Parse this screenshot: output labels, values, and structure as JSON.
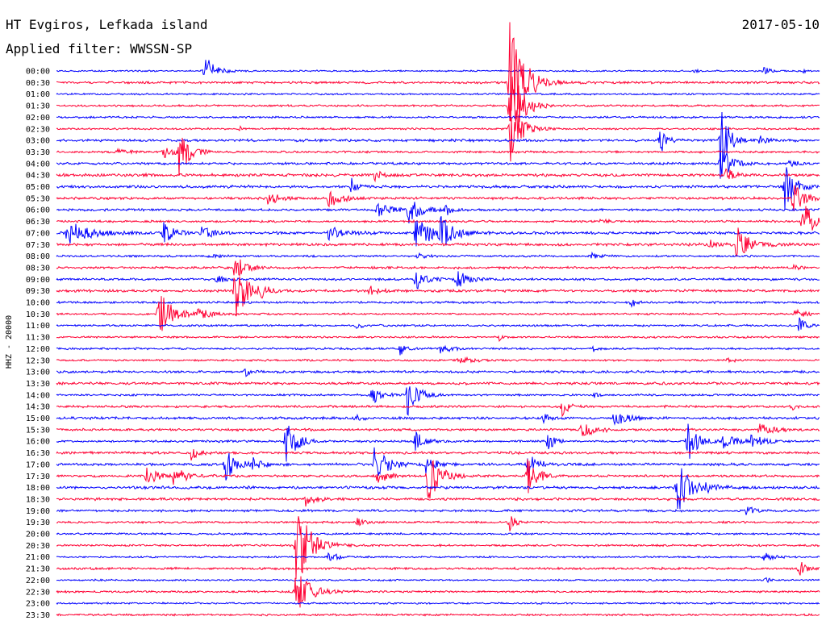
{
  "header": {
    "station": "HT Evgiros, Lefkada island",
    "date": "2017-05-10",
    "filter": "Applied filter: WWSSN-SP"
  },
  "chart_data": {
    "type": "line",
    "title": "HT Evgiros, Lefkada island",
    "subtitle": "Applied filter: WWSSN-SP",
    "date": "2017-05-10",
    "ylabel": "HHZ - 20000",
    "xlabel": "",
    "x_unit": "minutes after row start",
    "xlim": [
      0,
      30
    ],
    "grid": false,
    "legend": "none",
    "colors": [
      "#0000ff",
      "#ff0033"
    ],
    "noise": [
      0.8,
      1.2,
      0.9,
      1.0,
      1.0,
      1.0,
      1.3,
      1.1,
      1.2,
      1.5,
      1.4,
      1.3,
      1.2,
      1.1,
      1.3,
      1.4,
      1.0,
      1.2,
      1.2,
      1.3,
      1.1,
      1.0,
      1.0,
      1.0,
      1.0,
      1.0,
      1.2,
      1.3,
      1.0,
      1.2,
      1.3,
      1.2,
      1.1,
      1.3,
      1.3,
      1.2,
      1.4,
      1.3,
      1.2,
      1.0,
      1.0,
      1.0,
      0.9,
      1.2,
      0.9,
      1.0,
      0.9,
      1.0
    ],
    "rows": [
      "00:00",
      "00:30",
      "01:00",
      "01:30",
      "02:00",
      "02:30",
      "03:00",
      "03:30",
      "04:00",
      "04:30",
      "05:00",
      "05:30",
      "06:00",
      "06:30",
      "07:00",
      "07:30",
      "08:00",
      "08:30",
      "09:00",
      "09:30",
      "10:00",
      "10:30",
      "11:00",
      "11:30",
      "12:00",
      "12:30",
      "13:00",
      "13:30",
      "14:00",
      "14:30",
      "15:00",
      "15:30",
      "16:00",
      "16:30",
      "17:00",
      "17:30",
      "18:00",
      "18:30",
      "19:00",
      "19:30",
      "20:00",
      "20:30",
      "21:00",
      "21:30",
      "22:00",
      "22:30",
      "23:00",
      "23:30"
    ],
    "events": [
      {
        "row": 0,
        "t": 5.8,
        "amp": 22,
        "dur": 1.0
      },
      {
        "row": 0,
        "t": 27.8,
        "amp": 7,
        "dur": 0.5
      },
      {
        "row": 0,
        "t": 29.4,
        "amp": 5,
        "dur": 0.3
      },
      {
        "row": 0,
        "t": 25.1,
        "amp": 3,
        "dur": 0.3
      },
      {
        "row": 1,
        "t": 17.8,
        "amp": 95,
        "dur": 1.4
      },
      {
        "row": 3,
        "t": 17.8,
        "amp": 60,
        "dur": 1.2
      },
      {
        "row": 5,
        "t": 17.8,
        "amp": 55,
        "dur": 1.0
      },
      {
        "row": 5,
        "t": 7.2,
        "amp": 4,
        "dur": 0.3
      },
      {
        "row": 6,
        "t": 23.7,
        "amp": 20,
        "dur": 0.6
      },
      {
        "row": 6,
        "t": 26.1,
        "amp": 50,
        "dur": 0.8
      },
      {
        "row": 6,
        "t": 27.6,
        "amp": 7,
        "dur": 0.8
      },
      {
        "row": 7,
        "t": 4.2,
        "amp": 8,
        "dur": 1.0
      },
      {
        "row": 7,
        "t": 4.8,
        "amp": 30,
        "dur": 1.0
      },
      {
        "row": 7,
        "t": 2.4,
        "amp": 4,
        "dur": 1.0
      },
      {
        "row": 8,
        "t": 26.1,
        "amp": 25,
        "dur": 1.0
      },
      {
        "row": 8,
        "t": 28.8,
        "amp": 8,
        "dur": 0.6
      },
      {
        "row": 9,
        "t": 12.5,
        "amp": 6,
        "dur": 0.8
      },
      {
        "row": 9,
        "t": 26.3,
        "amp": 8,
        "dur": 1.0
      },
      {
        "row": 10,
        "t": 11.6,
        "amp": 12,
        "dur": 0.4
      },
      {
        "row": 10,
        "t": 28.6,
        "amp": 30,
        "dur": 1.2
      },
      {
        "row": 11,
        "t": 8.3,
        "amp": 10,
        "dur": 1.0
      },
      {
        "row": 11,
        "t": 10.7,
        "amp": 12,
        "dur": 1.2
      },
      {
        "row": 11,
        "t": 28.9,
        "amp": 25,
        "dur": 1.0
      },
      {
        "row": 12,
        "t": 12.6,
        "amp": 10,
        "dur": 1.5
      },
      {
        "row": 12,
        "t": 13.8,
        "amp": 18,
        "dur": 1.2
      },
      {
        "row": 12,
        "t": 15.3,
        "amp": 8,
        "dur": 0.5
      },
      {
        "row": 13,
        "t": 29.3,
        "amp": 30,
        "dur": 1.2
      },
      {
        "row": 13,
        "t": 21.4,
        "amp": 5,
        "dur": 0.5
      },
      {
        "row": 14,
        "t": 0.4,
        "amp": 15,
        "dur": 2.5
      },
      {
        "row": 14,
        "t": 4.2,
        "amp": 15,
        "dur": 1.0
      },
      {
        "row": 14,
        "t": 5.7,
        "amp": 10,
        "dur": 1.0
      },
      {
        "row": 14,
        "t": 10.7,
        "amp": 10,
        "dur": 1.6
      },
      {
        "row": 14,
        "t": 14.1,
        "amp": 18,
        "dur": 2.2
      },
      {
        "row": 14,
        "t": 15.1,
        "amp": 22,
        "dur": 1.0
      },
      {
        "row": 15,
        "t": 26.7,
        "amp": 25,
        "dur": 1.3
      },
      {
        "row": 15,
        "t": 25.7,
        "amp": 5,
        "dur": 0.6
      },
      {
        "row": 16,
        "t": 14.2,
        "amp": 4,
        "dur": 0.6
      },
      {
        "row": 16,
        "t": 21.0,
        "amp": 4,
        "dur": 0.8
      },
      {
        "row": 16,
        "t": 6.0,
        "amp": 3,
        "dur": 0.8
      },
      {
        "row": 17,
        "t": 7.0,
        "amp": 18,
        "dur": 1.0
      },
      {
        "row": 17,
        "t": 29.0,
        "amp": 4,
        "dur": 0.5
      },
      {
        "row": 18,
        "t": 14.1,
        "amp": 14,
        "dur": 1.0
      },
      {
        "row": 18,
        "t": 15.7,
        "amp": 14,
        "dur": 1.0
      },
      {
        "row": 18,
        "t": 6.3,
        "amp": 6,
        "dur": 0.8
      },
      {
        "row": 19,
        "t": 7.0,
        "amp": 40,
        "dur": 1.2
      },
      {
        "row": 19,
        "t": 8.0,
        "amp": 10,
        "dur": 0.6
      },
      {
        "row": 19,
        "t": 12.3,
        "amp": 6,
        "dur": 1.0
      },
      {
        "row": 20,
        "t": 22.6,
        "amp": 8,
        "dur": 0.4
      },
      {
        "row": 21,
        "t": 4.0,
        "amp": 30,
        "dur": 1.4
      },
      {
        "row": 21,
        "t": 5.5,
        "amp": 10,
        "dur": 1.2
      },
      {
        "row": 21,
        "t": 29.0,
        "amp": 8,
        "dur": 1.0
      },
      {
        "row": 22,
        "t": 29.2,
        "amp": 14,
        "dur": 0.6
      },
      {
        "row": 22,
        "t": 11.8,
        "amp": 5,
        "dur": 0.5
      },
      {
        "row": 23,
        "t": 17.4,
        "amp": 5,
        "dur": 0.3
      },
      {
        "row": 24,
        "t": 13.5,
        "amp": 9,
        "dur": 0.6
      },
      {
        "row": 24,
        "t": 15.1,
        "amp": 7,
        "dur": 1.0
      },
      {
        "row": 24,
        "t": 21.1,
        "amp": 5,
        "dur": 0.3
      },
      {
        "row": 25,
        "t": 15.8,
        "amp": 4,
        "dur": 1.5
      },
      {
        "row": 25,
        "t": 26.4,
        "amp": 4,
        "dur": 0.6
      },
      {
        "row": 26,
        "t": 7.4,
        "amp": 6,
        "dur": 0.6
      },
      {
        "row": 28,
        "t": 12.4,
        "amp": 14,
        "dur": 0.8
      },
      {
        "row": 28,
        "t": 13.8,
        "amp": 30,
        "dur": 1.0
      },
      {
        "row": 28,
        "t": 21.1,
        "amp": 5,
        "dur": 0.4
      },
      {
        "row": 29,
        "t": 19.9,
        "amp": 20,
        "dur": 0.5
      },
      {
        "row": 29,
        "t": 28.9,
        "amp": 8,
        "dur": 0.3
      },
      {
        "row": 30,
        "t": 11.7,
        "amp": 5,
        "dur": 0.6
      },
      {
        "row": 30,
        "t": 19.1,
        "amp": 6,
        "dur": 0.6
      },
      {
        "row": 30,
        "t": 21.9,
        "amp": 10,
        "dur": 1.4
      },
      {
        "row": 31,
        "t": 20.6,
        "amp": 10,
        "dur": 1.4
      },
      {
        "row": 31,
        "t": 27.6,
        "amp": 8,
        "dur": 1.5
      },
      {
        "row": 32,
        "t": 9.0,
        "amp": 35,
        "dur": 1.0
      },
      {
        "row": 32,
        "t": 14.1,
        "amp": 12,
        "dur": 1.0
      },
      {
        "row": 32,
        "t": 19.3,
        "amp": 14,
        "dur": 0.6
      },
      {
        "row": 32,
        "t": 24.8,
        "amp": 30,
        "dur": 1.0
      },
      {
        "row": 32,
        "t": 26.2,
        "amp": 10,
        "dur": 1.4
      },
      {
        "row": 32,
        "t": 27.3,
        "amp": 8,
        "dur": 1.3
      },
      {
        "row": 33,
        "t": 5.3,
        "amp": 10,
        "dur": 0.8
      },
      {
        "row": 34,
        "t": 6.6,
        "amp": 22,
        "dur": 1.2
      },
      {
        "row": 34,
        "t": 7.7,
        "amp": 8,
        "dur": 1.0
      },
      {
        "row": 34,
        "t": 12.5,
        "amp": 25,
        "dur": 1.2
      },
      {
        "row": 34,
        "t": 14.5,
        "amp": 14,
        "dur": 0.8
      },
      {
        "row": 34,
        "t": 18.5,
        "amp": 14,
        "dur": 1.0
      },
      {
        "row": 35,
        "t": 3.5,
        "amp": 12,
        "dur": 1.2
      },
      {
        "row": 35,
        "t": 4.6,
        "amp": 12,
        "dur": 1.2
      },
      {
        "row": 35,
        "t": 14.6,
        "amp": 35,
        "dur": 1.2
      },
      {
        "row": 35,
        "t": 18.5,
        "amp": 25,
        "dur": 1.0
      },
      {
        "row": 35,
        "t": 12.6,
        "amp": 10,
        "dur": 1.0
      },
      {
        "row": 36,
        "t": 24.4,
        "amp": 35,
        "dur": 1.2
      },
      {
        "row": 36,
        "t": 25.5,
        "amp": 6,
        "dur": 1.0
      },
      {
        "row": 37,
        "t": 9.8,
        "amp": 8,
        "dur": 1.0
      },
      {
        "row": 38,
        "t": 27.1,
        "amp": 10,
        "dur": 0.5
      },
      {
        "row": 39,
        "t": 17.8,
        "amp": 12,
        "dur": 0.6
      },
      {
        "row": 39,
        "t": 11.8,
        "amp": 5,
        "dur": 0.8
      },
      {
        "row": 41,
        "t": 9.4,
        "amp": 60,
        "dur": 1.4
      },
      {
        "row": 42,
        "t": 10.7,
        "amp": 6,
        "dur": 1.0
      },
      {
        "row": 42,
        "t": 27.8,
        "amp": 6,
        "dur": 1.0
      },
      {
        "row": 43,
        "t": 29.2,
        "amp": 14,
        "dur": 0.5
      },
      {
        "row": 44,
        "t": 27.9,
        "amp": 5,
        "dur": 0.3
      },
      {
        "row": 45,
        "t": 9.4,
        "amp": 30,
        "dur": 1.4
      }
    ]
  }
}
